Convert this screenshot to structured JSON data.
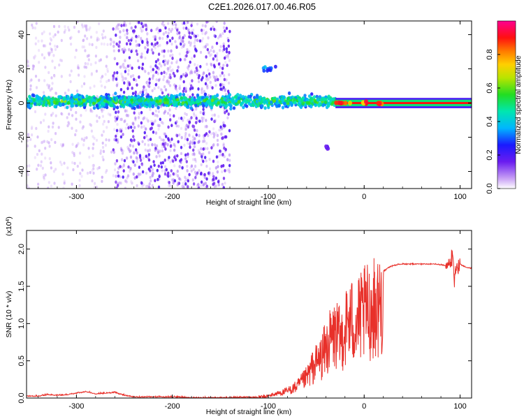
{
  "title": "C2E1.2026.017.00.46.R05",
  "chart_data": [
    {
      "type": "heatmap",
      "xlabel": "Height of straight line (km)",
      "ylabel": "Frequency (Hz)",
      "xlim": [
        -352,
        112
      ],
      "ylim": [
        -50,
        48
      ],
      "xticks": [
        -300,
        -200,
        -100,
        0,
        100
      ],
      "xtick_labels": [
        "-300",
        "-200",
        "-100",
        "0",
        "100"
      ],
      "yticks": [
        -40,
        -20,
        0,
        20,
        40
      ],
      "ytick_labels": [
        "-40",
        "-20",
        "0",
        "20",
        "40"
      ],
      "colorbar": {
        "label": "Normalized spectral amplitude",
        "range": [
          0,
          1
        ],
        "ticks": [
          0.0,
          0.2,
          0.4,
          0.6,
          0.8
        ],
        "tick_labels": [
          "0.0",
          "0.2",
          "0.4",
          "0.6",
          "0.8"
        ],
        "colormap": "rainbow (white-violet-blue-cyan-green-yellow-red-magenta)"
      },
      "features": [
        {
          "description": "diffuse broadband speckle",
          "x_range": [
            -352,
            -140
          ],
          "freq_range": [
            -50,
            48
          ],
          "amplitude": 0.05
        },
        {
          "description": "denser speckle block",
          "x_range": [
            -262,
            -140
          ],
          "freq_range": [
            -50,
            48
          ],
          "amplitude": 0.1
        },
        {
          "description": "main signal band",
          "x_range": [
            -352,
            -30
          ],
          "freq_center": 1,
          "freq_halfwidth": 5,
          "amplitude": 0.35
        },
        {
          "description": "strong narrow carrier line",
          "x_range": [
            -30,
            112
          ],
          "freq_center": 0,
          "freq_halfwidth": 1.2,
          "amplitude": 0.9
        },
        {
          "description": "side feature near -100 km",
          "x_range": [
            -105,
            -92
          ],
          "freq_center": 20,
          "amplitude": 0.3
        },
        {
          "description": "side feature near -40 km",
          "x_range": [
            -40,
            -37
          ],
          "freq_center": -26,
          "amplitude": 0.15
        }
      ]
    },
    {
      "type": "line",
      "xlabel": "Height of straight line (km)",
      "ylabel": "SNR (10 * v/v)",
      "y_multiplier": "(x10^4)",
      "y_multiplier_base": "(x10",
      "y_multiplier_exp": "4",
      "y_multiplier_close": ")",
      "xlim": [
        -352,
        112
      ],
      "ylim": [
        0,
        2.25
      ],
      "xticks": [
        -300,
        -200,
        -100,
        0,
        100
      ],
      "xtick_labels": [
        "-300",
        "-200",
        "-100",
        "0",
        "100"
      ],
      "yticks": [
        0.0,
        0.5,
        1.0,
        1.5,
        2.0
      ],
      "ytick_labels": [
        "0.0",
        "0.5",
        "1.0",
        "1.5",
        "2.0"
      ],
      "color": "#e8302a",
      "series": [
        {
          "name": "SNR",
          "x": [
            -352,
            -340,
            -330,
            -320,
            -310,
            -300,
            -290,
            -280,
            -270,
            -260,
            -250,
            -240,
            -220,
            -200,
            -180,
            -160,
            -140,
            -120,
            -110,
            -100,
            -90,
            -80,
            -70,
            -60,
            -55,
            -50,
            -45,
            -40,
            -35,
            -30,
            -25,
            -20,
            -15,
            -10,
            -5,
            0,
            5,
            10,
            15,
            20,
            25,
            30,
            40,
            50,
            60,
            70,
            80,
            85,
            90,
            92,
            94,
            96,
            100,
            105,
            112
          ],
          "values": [
            0.02,
            0.02,
            0.04,
            0.03,
            0.04,
            0.06,
            0.08,
            0.05,
            0.06,
            0.07,
            0.03,
            0.01,
            0.01,
            0.01,
            0.0,
            0.0,
            0.0,
            0.01,
            0.02,
            0.04,
            0.08,
            0.12,
            0.2,
            0.35,
            0.5,
            0.6,
            0.7,
            0.85,
            1.0,
            1.1,
            1.0,
            1.2,
            1.35,
            1.3,
            1.35,
            1.45,
            1.5,
            1.55,
            1.6,
            1.7,
            1.75,
            1.78,
            1.8,
            1.8,
            1.8,
            1.8,
            1.79,
            1.78,
            1.8,
            1.95,
            1.6,
            1.75,
            1.8,
            1.76,
            1.74
          ]
        }
      ]
    }
  ]
}
